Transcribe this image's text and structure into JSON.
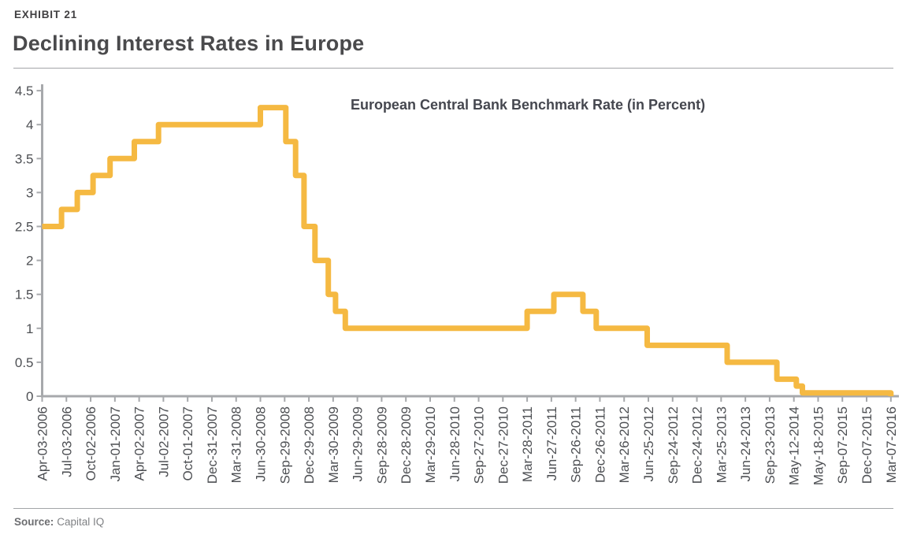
{
  "header": {
    "exhibit": "EXHIBIT 21",
    "title": "Declining Interest Rates in Europe"
  },
  "footer": {
    "source_label": "Source:",
    "source_value": "Capital IQ"
  },
  "chart_data": {
    "type": "line",
    "style": "step",
    "title": "European Central Bank Benchmark Rate (in Percent)",
    "xlabel": "",
    "ylabel": "",
    "ylim": [
      0,
      4.5
    ],
    "grid": false,
    "legend": "none",
    "y_ticks": [
      0,
      0.5,
      1,
      1.5,
      2,
      2.5,
      3,
      3.5,
      4,
      4.5
    ],
    "x_tick_labels": [
      "Apr-03-2006",
      "Jul-03-2006",
      "Oct-02-2006",
      "Jan-01-2007",
      "Apr-02-2007",
      "Jul-02-2007",
      "Oct-01-2007",
      "Dec-31-2007",
      "Mar-31-2008",
      "Jun-30-2008",
      "Sep-29-2008",
      "Dec-29-2008",
      "Mar-30-2009",
      "Jun-29-2009",
      "Sep-28-2009",
      "Dec-28-2009",
      "Mar-29-2010",
      "Jun-28-2010",
      "Sep-27-2010",
      "Dec-27-2010",
      "Mar-28-2011",
      "Jun-27-2011",
      "Sep-26-2011",
      "Dec-26-2011",
      "Mar-26-2012",
      "Jun-25-2012",
      "Sep-24-2012",
      "Dec-24-2012",
      "Mar-25-2013",
      "Jun-24-2013",
      "Sep-23-2013",
      "May-12-2014",
      "May-18-2015",
      "Sep-07-2015",
      "Dec-07-2015",
      "Mar-07-2016"
    ],
    "series": [
      {
        "name": "European Central Bank Benchmark Rate (in Percent)",
        "breakpoints": [
          [
            0,
            2.5
          ],
          [
            0.8,
            2.75
          ],
          [
            1.45,
            3.0
          ],
          [
            2.1,
            3.25
          ],
          [
            2.8,
            3.5
          ],
          [
            3.8,
            3.75
          ],
          [
            4.8,
            4.0
          ],
          [
            9.0,
            4.25
          ],
          [
            10.05,
            3.75
          ],
          [
            10.45,
            3.25
          ],
          [
            10.8,
            2.5
          ],
          [
            11.25,
            2.0
          ],
          [
            11.8,
            1.5
          ],
          [
            12.1,
            1.25
          ],
          [
            12.5,
            1.0
          ],
          [
            20.0,
            1.25
          ],
          [
            21.1,
            1.5
          ],
          [
            22.3,
            1.25
          ],
          [
            22.85,
            1.0
          ],
          [
            24.95,
            0.75
          ],
          [
            28.25,
            0.5
          ],
          [
            30.3,
            0.25
          ],
          [
            31.1,
            0.15
          ],
          [
            31.35,
            0.05
          ],
          [
            34.85,
            0.05
          ],
          [
            35,
            0.0
          ]
        ]
      }
    ],
    "colors": {
      "line": "#f5b942",
      "axis": "#a7a9ac",
      "tick_label": "#4d4f53",
      "annotation": "#45474f"
    }
  }
}
